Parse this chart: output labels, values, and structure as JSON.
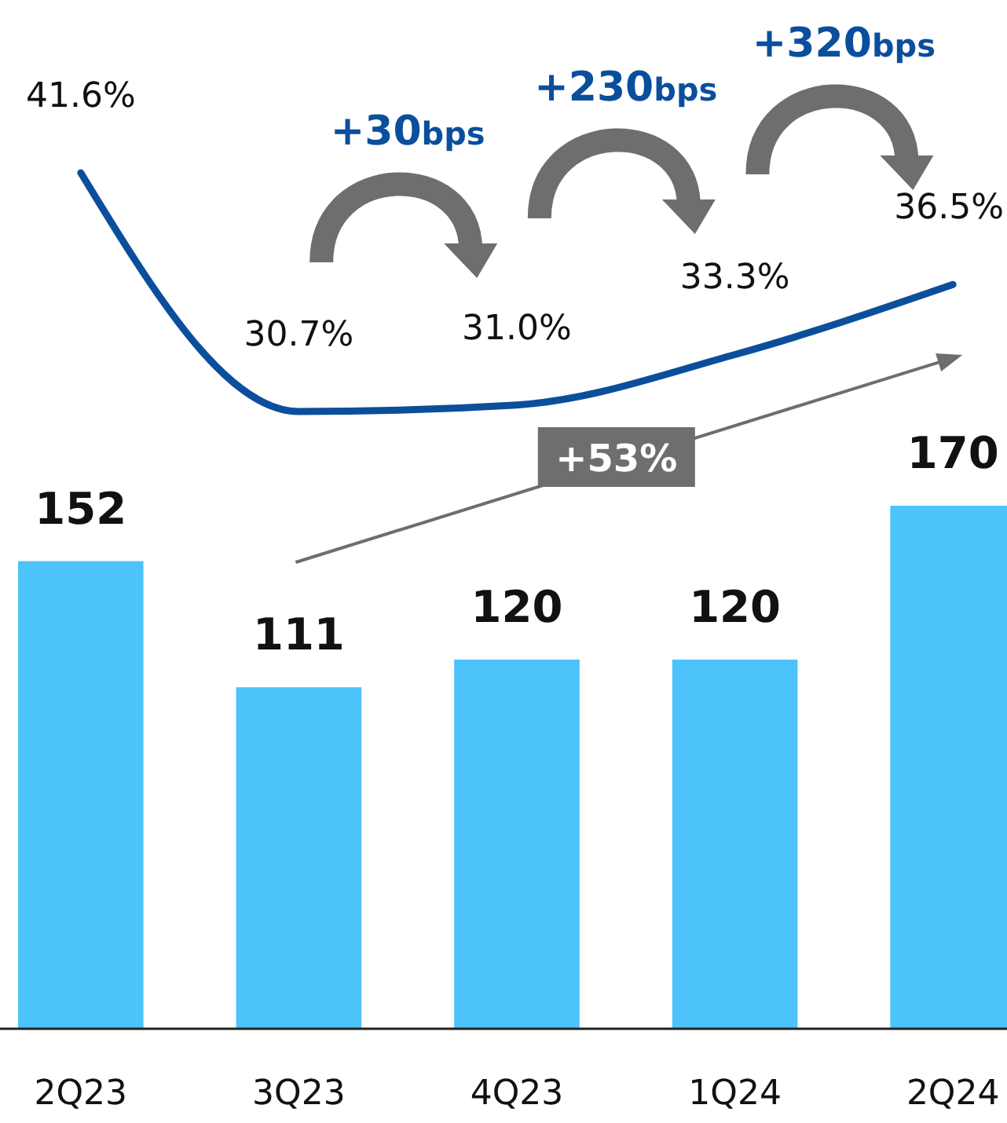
{
  "chart_data": [
    {
      "type": "bar",
      "categories": [
        "2Q23",
        "3Q23",
        "4Q23",
        "1Q24",
        "2Q24"
      ],
      "data_labels": true,
      "values": [
        152,
        111,
        120,
        120,
        170
      ],
      "color": "#4dc3fb",
      "annotations": [
        "+53%"
      ]
    },
    {
      "type": "line",
      "categories": [
        null,
        null,
        null,
        null,
        null
      ],
      "values": [
        41.6,
        30.7,
        31.0,
        33.3,
        36.5
      ],
      "value_labels": [
        "41.6%",
        "30.7%",
        "31.0%",
        "33.3%",
        "36.5%"
      ],
      "color": "#0b4f9c",
      "annotations": [
        "+30bps",
        "+230bps",
        "+320bps"
      ]
    }
  ]
}
